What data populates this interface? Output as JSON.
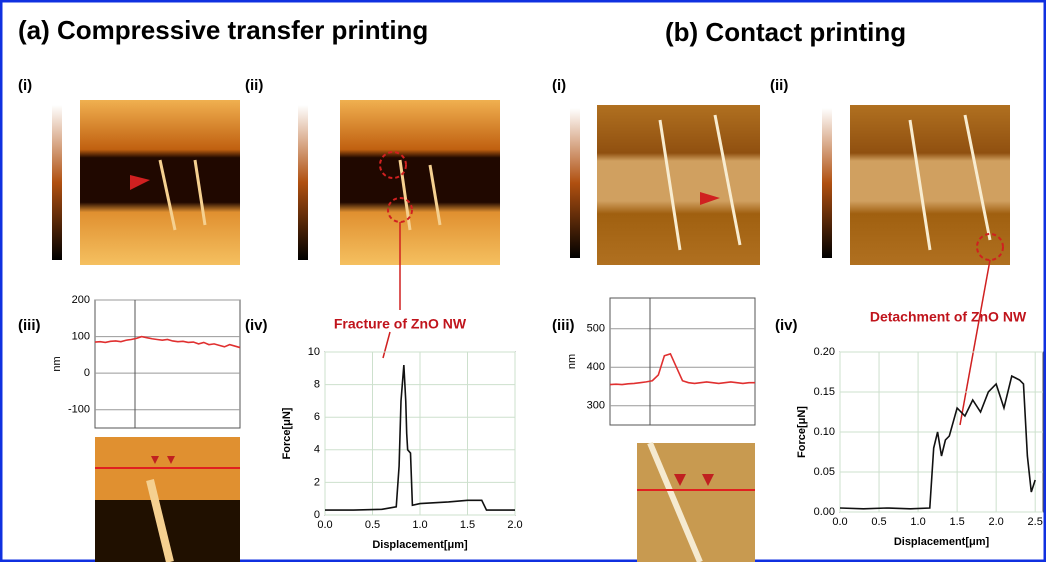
{
  "panels": [
    {
      "title": "(a) Compressive transfer printing",
      "labels": [
        "(i)",
        "(ii)",
        "(iii)",
        "(iv)"
      ],
      "annotation": "Fracture of ZnO NW"
    },
    {
      "title": "(b) Contact printing",
      "labels": [
        "(i)",
        "(ii)",
        "(iii)",
        "(iv)"
      ],
      "annotation": "Detachment of ZnO NW"
    }
  ],
  "chart_data": [
    {
      "type": "line",
      "ylabel": "nm",
      "color": "#e03030",
      "ylim": [
        -150,
        200
      ],
      "yticks": [
        200,
        100,
        0,
        -100
      ],
      "grid": true,
      "values": [
        85,
        86,
        84,
        87,
        88,
        86,
        90,
        92,
        95,
        100,
        97,
        94,
        92,
        90,
        92,
        88,
        86,
        87,
        84,
        85,
        80,
        84,
        78,
        80,
        76,
        72,
        78,
        74,
        70
      ]
    },
    {
      "type": "line",
      "xlabel": "Displacement[μm]",
      "ylabel": "Force[μN]",
      "color": "#111111",
      "grid": true,
      "xlim": [
        0,
        2
      ],
      "xticks": [
        {
          "value": 0,
          "label": "0.0"
        },
        {
          "value": 0.5,
          "label": "0.5"
        },
        {
          "value": 1,
          "label": "1.0"
        },
        {
          "value": 1.5,
          "label": "1.5"
        },
        {
          "value": 2,
          "label": "2.0"
        }
      ],
      "ylim": [
        0,
        10
      ],
      "yticks": [
        0,
        2,
        4,
        6,
        8,
        10
      ],
      "x": [
        0,
        0.3,
        0.6,
        0.75,
        0.78,
        0.8,
        0.83,
        0.85,
        0.86,
        0.87,
        0.9,
        0.92,
        1.0,
        1.3,
        1.5,
        1.65,
        1.7,
        2.0
      ],
      "values": [
        0.3,
        0.3,
        0.35,
        0.5,
        3,
        7,
        9.2,
        7,
        5,
        4,
        3.8,
        0.6,
        0.7,
        0.8,
        0.9,
        0.9,
        0.3,
        0.3
      ]
    },
    {
      "type": "line",
      "ylabel": "nm",
      "color": "#e03030",
      "ylim": [
        250,
        580
      ],
      "yticks": [
        500,
        400,
        300
      ],
      "grid": true,
      "values": [
        355,
        356,
        355,
        357,
        358,
        360,
        362,
        365,
        380,
        430,
        435,
        400,
        365,
        360,
        358,
        360,
        362,
        360,
        358,
        360,
        362,
        360,
        358,
        360,
        360
      ]
    },
    {
      "type": "line",
      "xlabel": "Displacement[μm]",
      "ylabel": "Force[μN]",
      "color": "#111111",
      "grid": true,
      "xlim": [
        0,
        2.6
      ],
      "xticks": [
        {
          "value": 0,
          "label": "0.0"
        },
        {
          "value": 0.5,
          "label": "0.5"
        },
        {
          "value": 1,
          "label": "1.0"
        },
        {
          "value": 1.5,
          "label": "1.5"
        },
        {
          "value": 2,
          "label": "2.0"
        },
        {
          "value": 2.5,
          "label": "2.5"
        }
      ],
      "ylim": [
        0,
        0.2
      ],
      "yticks": [
        {
          "value": 0,
          "label": "0.00"
        },
        0.05,
        {
          "value": 0.1,
          "label": "0.10"
        },
        0.15,
        {
          "value": 0.2,
          "label": "0.20"
        }
      ],
      "x": [
        0,
        0.3,
        0.6,
        0.9,
        1.15,
        1.2,
        1.25,
        1.3,
        1.35,
        1.4,
        1.5,
        1.6,
        1.7,
        1.8,
        1.9,
        2.0,
        2.1,
        2.2,
        2.3,
        2.35,
        2.4,
        2.45,
        2.5
      ],
      "values": [
        0.005,
        0.004,
        0.005,
        0.004,
        0.005,
        0.08,
        0.1,
        0.07,
        0.09,
        0.095,
        0.13,
        0.12,
        0.14,
        0.125,
        0.15,
        0.16,
        0.13,
        0.17,
        0.165,
        0.16,
        0.07,
        0.025,
        0.04
      ]
    }
  ]
}
